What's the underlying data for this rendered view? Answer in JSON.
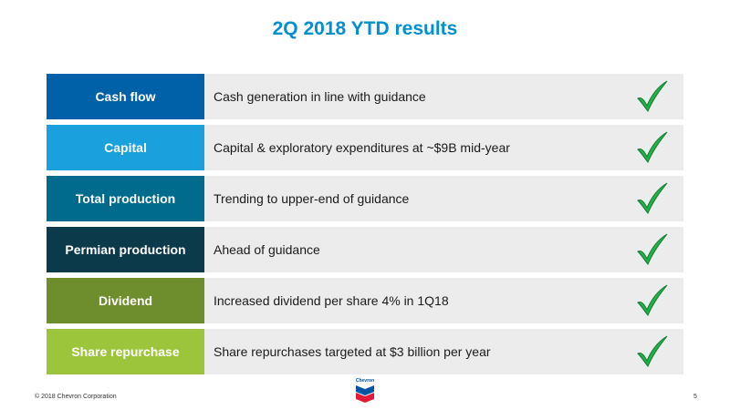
{
  "title": "2Q 2018 YTD results",
  "rows": [
    {
      "label": "Cash flow",
      "description": "Cash generation in line with guidance",
      "color": "#0061a8",
      "check_icon": "check-mark-icon"
    },
    {
      "label": "Capital",
      "description": "Capital & exploratory expenditures at ~$9B mid-year",
      "color": "#1aa0dc",
      "check_icon": "check-mark-icon"
    },
    {
      "label": "Total production",
      "description": "Trending to upper-end of guidance",
      "color": "#006b8c",
      "check_icon": "check-mark-icon"
    },
    {
      "label": "Permian production",
      "description": "Ahead of guidance",
      "color": "#0b3a4a",
      "check_icon": "check-mark-icon"
    },
    {
      "label": "Dividend",
      "description": "Increased dividend per share 4% in 1Q18",
      "color": "#6e8e2d",
      "check_icon": "check-mark-icon"
    },
    {
      "label": "Share repurchase",
      "description": "Share repurchases targeted at $3 billion per year",
      "color": "#9cc53b",
      "check_icon": "check-mark-icon"
    }
  ],
  "footer": {
    "copyright": "© 2018 Chevron Corporation",
    "page_number": "5",
    "logo_text": "Chevron"
  },
  "colors": {
    "title": "#0090d0",
    "check": "#22b24c",
    "row_background": "#ececec"
  }
}
